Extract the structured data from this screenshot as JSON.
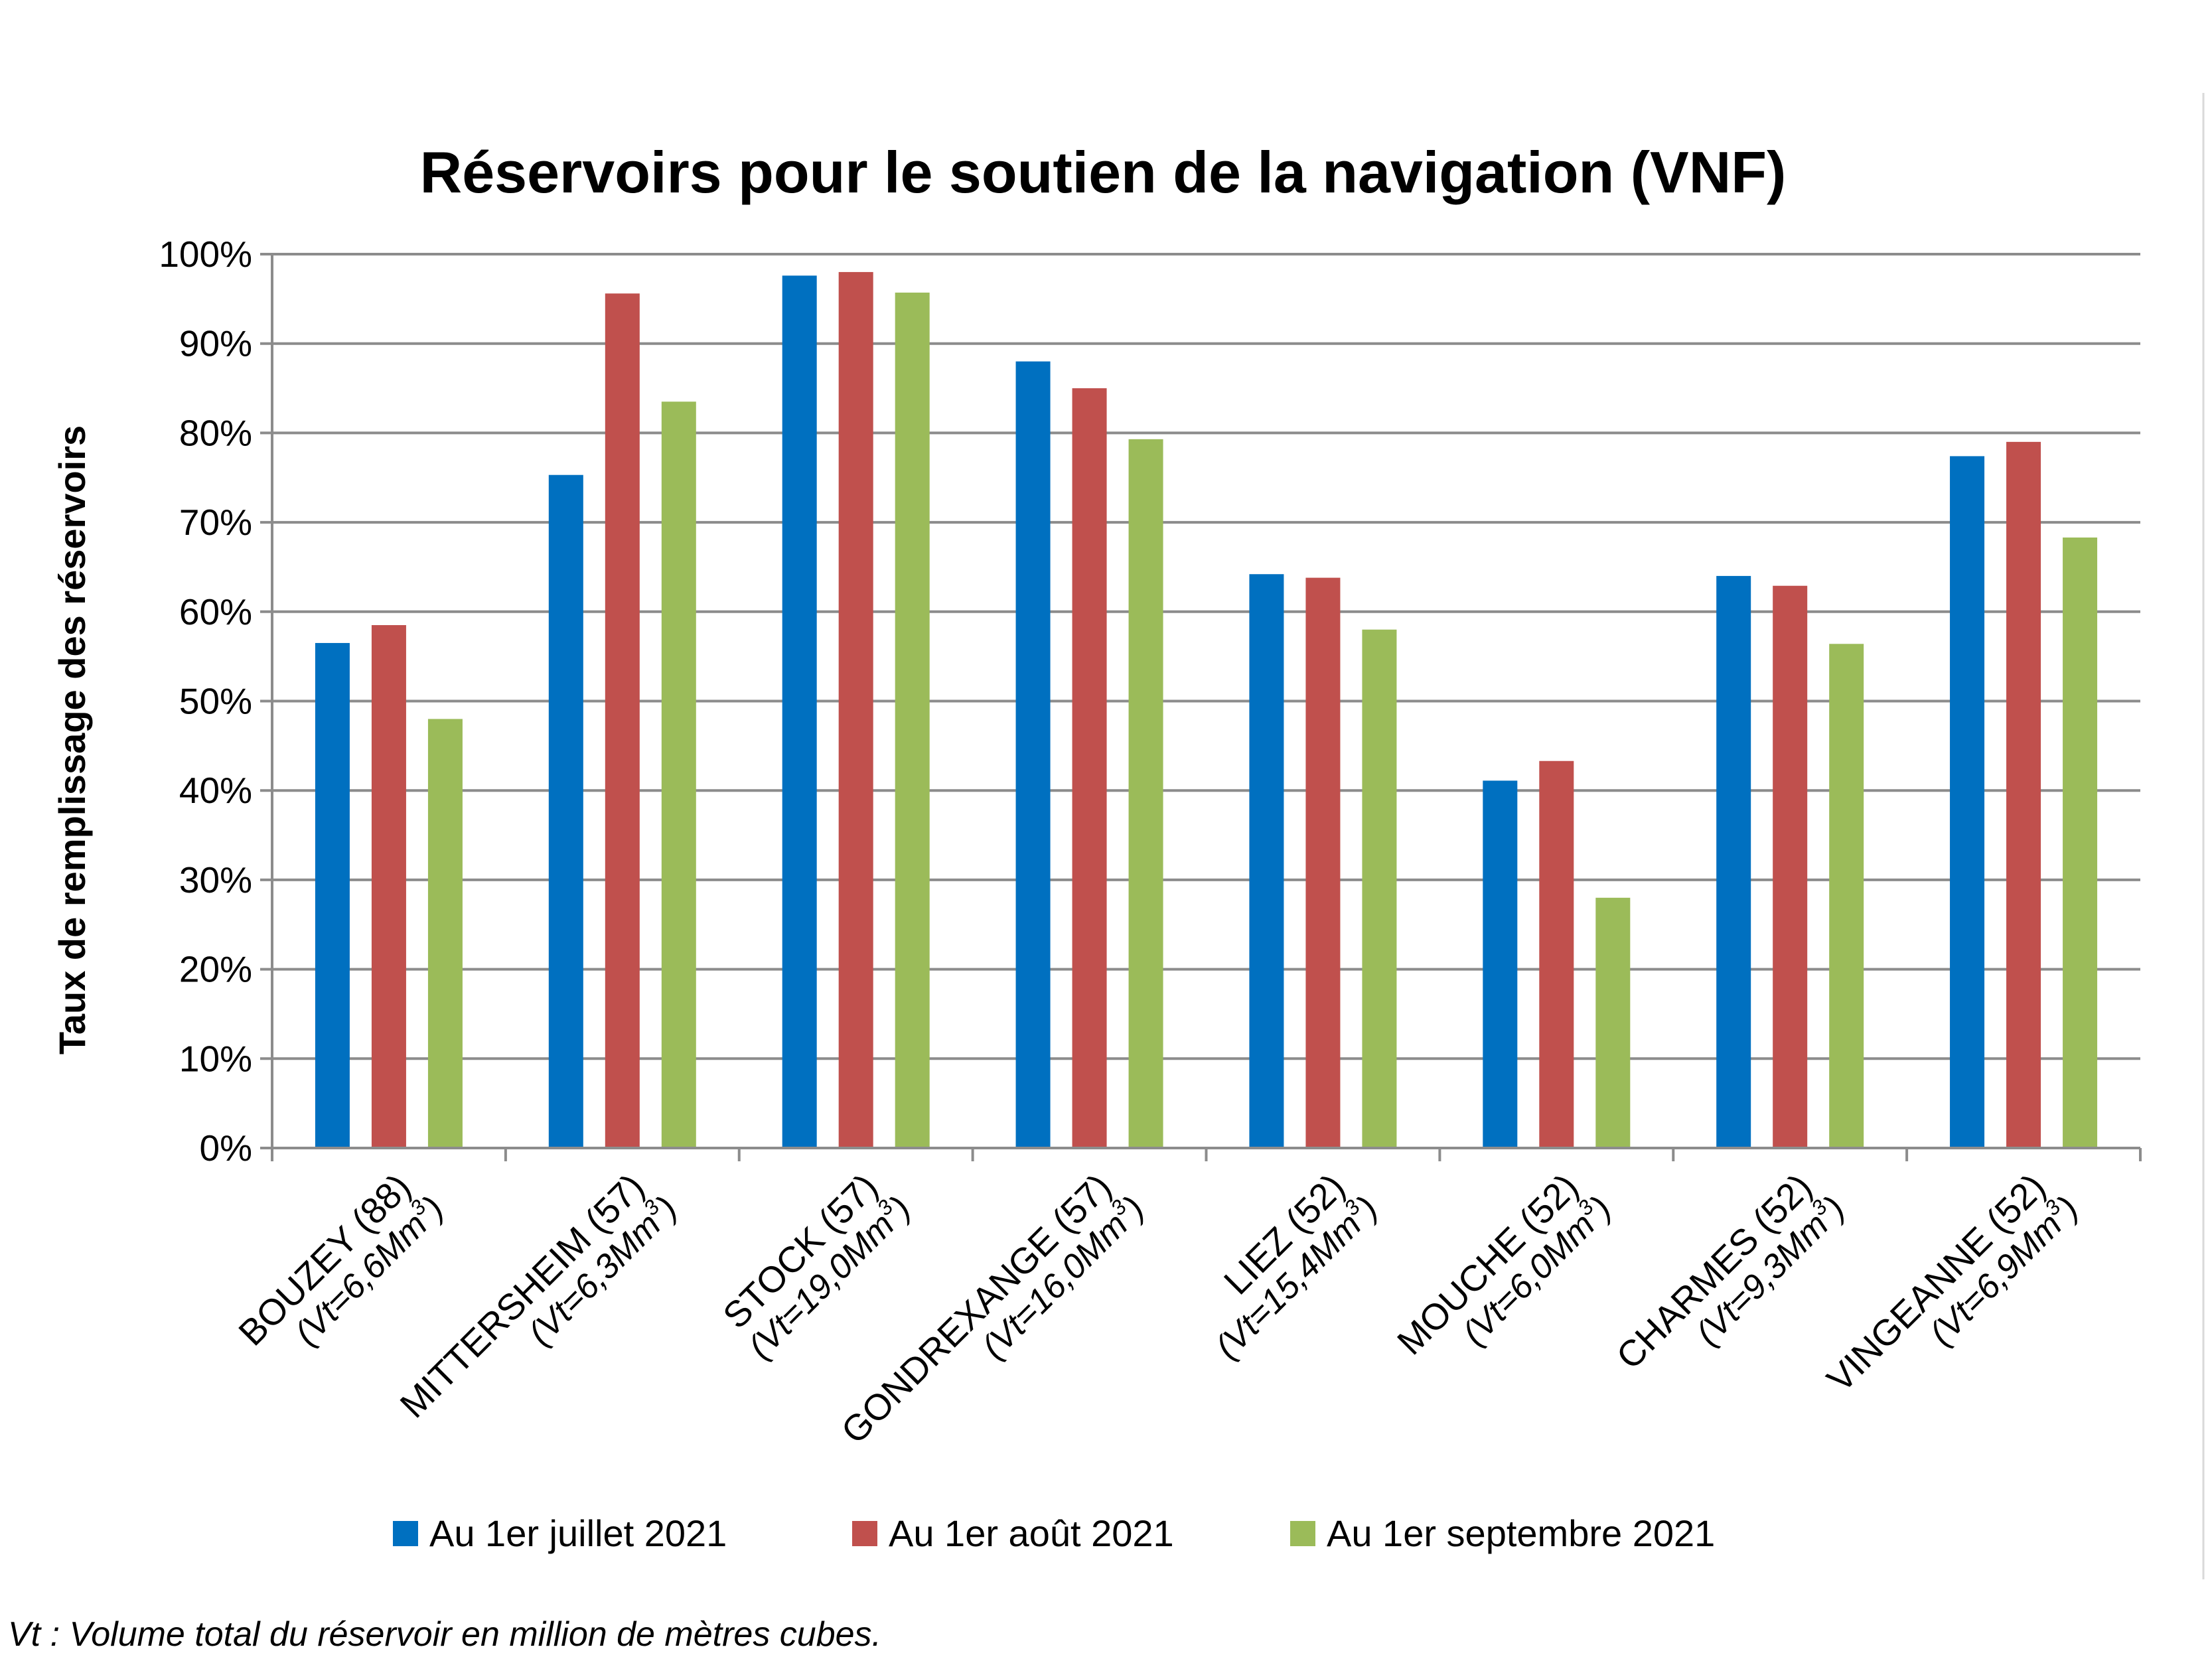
{
  "chart_data": {
    "type": "bar",
    "title": "Réservoirs pour le soutien de la navigation (VNF)",
    "ylabel": "Taux de remplissage des réservoirs",
    "xlabel": "",
    "ylim": [
      0,
      100
    ],
    "yticks": [
      "0%",
      "10%",
      "20%",
      "30%",
      "40%",
      "50%",
      "60%",
      "70%",
      "80%",
      "90%",
      "100%"
    ],
    "grid": true,
    "legend_position": "bottom",
    "categories": [
      {
        "name": "BOUZEY (88)",
        "volume": "(Vt=6,6Mm",
        "sup": "3",
        "close": ")"
      },
      {
        "name": "MITTERSHEIM (57)",
        "volume": "(Vt=6,3Mm",
        "sup": "3",
        "close": ")"
      },
      {
        "name": "STOCK (57)",
        "volume": "(Vt=19,0Mm",
        "sup": "3",
        "close": ")"
      },
      {
        "name": "GONDREXANGE (57)",
        "volume": "(Vt=16,0Mm",
        "sup": "3",
        "close": ")"
      },
      {
        "name": "LIEZ (52)",
        "volume": "(Vt=15,4Mm",
        "sup": "3",
        "close": ")"
      },
      {
        "name": "MOUCHE (52)",
        "volume": "(Vt=6,0Mm",
        "sup": "3",
        "close": ")"
      },
      {
        "name": "CHARMES (52)",
        "volume": "(Vt=9,3Mm",
        "sup": "3",
        "close": ")"
      },
      {
        "name": "VINGEANNE (52)",
        "volume": "(Vt=6,9Mm",
        "sup": "3",
        "close": ")"
      }
    ],
    "series": [
      {
        "name": "Au 1er juillet 2021",
        "color": "#0070C0",
        "values": [
          56.5,
          75.3,
          97.6,
          88.0,
          64.2,
          41.1,
          64.0,
          77.4
        ]
      },
      {
        "name": "Au 1er août 2021",
        "color": "#C0504D",
        "values": [
          58.5,
          95.6,
          98.0,
          85.0,
          63.8,
          43.3,
          62.9,
          79.0
        ]
      },
      {
        "name": "Au 1er septembre 2021",
        "color": "#9BBB59",
        "values": [
          48.0,
          83.5,
          95.7,
          79.3,
          58.0,
          28.0,
          56.4,
          68.3
        ]
      }
    ]
  },
  "footnote": "Vt : Volume total du réservoir en million de mètres cubes."
}
